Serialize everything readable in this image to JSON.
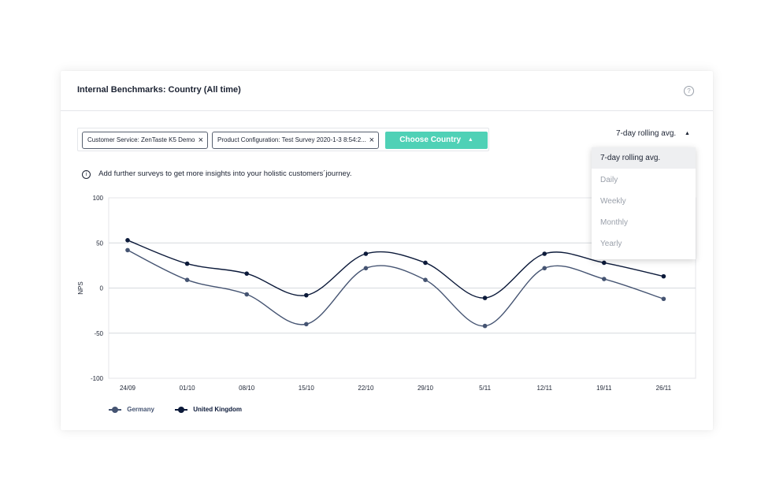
{
  "header": {
    "title": "Internal Benchmarks: Country (All time)",
    "help_icon": "help-circle-icon"
  },
  "filters": {
    "chips": [
      {
        "label": "Customer Service: ZenTaste K5 Demo",
        "remove": "×"
      },
      {
        "label": "Product Configuration: Test Survey 2020-1-3 8:54:2...",
        "remove": "×"
      }
    ],
    "choose_label": "Choose Country",
    "choose_caret": "▲"
  },
  "info": {
    "icon": "info-icon",
    "symbol": "i",
    "text": "Add further surveys to get more insights into your holistic customers´journey."
  },
  "range": {
    "selected": "7-day rolling avg.",
    "caret": "▲",
    "options": [
      "7-day rolling avg.",
      "Daily",
      "Weekly",
      "Monthly",
      "Yearly"
    ]
  },
  "colors": {
    "germany": "#455472",
    "uk": "#0c1a3a",
    "accent": "#4fd1b6",
    "grid": "#e4e6ea"
  },
  "chart_data": {
    "type": "line",
    "ylabel": "NPS",
    "xlabel": "",
    "ylim": [
      -100,
      100
    ],
    "yticks": [
      100,
      50,
      0,
      -50,
      -100
    ],
    "x": [
      "24/09",
      "01/10",
      "08/10",
      "15/10",
      "22/10",
      "29/10",
      "5/11",
      "12/11",
      "19/11",
      "26/11"
    ],
    "series": [
      {
        "name": "Germany",
        "values": [
          42,
          9,
          -7,
          -40,
          22,
          9,
          -42,
          22,
          10,
          -12
        ]
      },
      {
        "name": "United Kingdom",
        "values": [
          53,
          27,
          16,
          -8,
          38,
          28,
          -11,
          38,
          28,
          13
        ]
      }
    ],
    "grid": true,
    "legend": "bottom-left"
  }
}
